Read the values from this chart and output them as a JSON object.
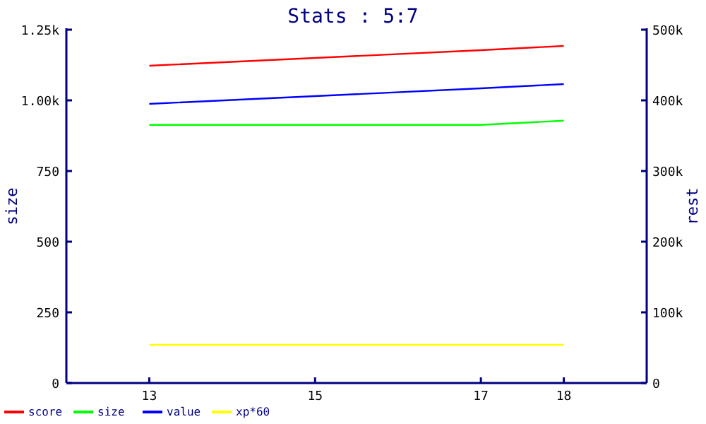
{
  "chart_data": {
    "type": "line",
    "title": "Stats : 5:7",
    "ylabel": "size",
    "y2label": "rest",
    "x": [
      13,
      15,
      17,
      18
    ],
    "xlim": [
      12,
      19
    ],
    "xticks": [
      13,
      15,
      17,
      18
    ],
    "ylim": [
      0,
      1250
    ],
    "yticks": [
      0,
      250,
      500,
      750,
      {
        "value": 1000,
        "label": "1.00k"
      },
      {
        "value": 1250,
        "label": "1.25k"
      }
    ],
    "y2lim": [
      0,
      500000
    ],
    "y2ticks": [
      {
        "value": 0,
        "label": "0"
      },
      {
        "value": 100000,
        "label": "100k"
      },
      {
        "value": 200000,
        "label": "200k"
      },
      {
        "value": 300000,
        "label": "300k"
      },
      {
        "value": 400000,
        "label": "400k"
      },
      {
        "value": 500000,
        "label": "500k"
      }
    ],
    "series": [
      {
        "name": "score",
        "color": "#ff0000",
        "axis": "y2",
        "values": [
          449000,
          460000,
          471000,
          477000
        ]
      },
      {
        "name": "size",
        "color": "#00ff00",
        "values": [
          913,
          913,
          913,
          928
        ]
      },
      {
        "name": "value",
        "color": "#0000ff",
        "axis": "y2",
        "values": [
          395000,
          406000,
          417000,
          423000
        ]
      },
      {
        "name": "xp*60",
        "color": "#ffff00",
        "axis": "y2",
        "values": [
          54000,
          54000,
          54000,
          54000
        ]
      }
    ],
    "legend": "bottom left",
    "grid": false,
    "marker": "none",
    "line_style": "solid"
  }
}
